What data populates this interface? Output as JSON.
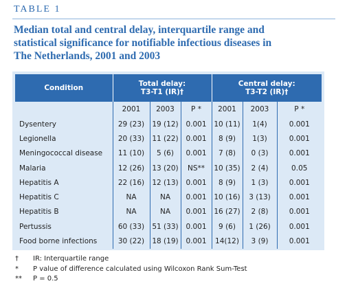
{
  "label": "TABLE 1",
  "caption": {
    "lines": [
      "Median total and central delay, interquartile range and",
      "statistical significance for notifiable infectious diseases in",
      "The Netherlands, 2001 and 2003"
    ]
  },
  "table": {
    "header": {
      "condition": "Condition",
      "groups": [
        {
          "lines": [
            "Total delay:",
            "T3-T1 (IR)†"
          ]
        },
        {
          "lines": [
            "Central delay:",
            "T3-T2 (IR)†"
          ]
        }
      ],
      "subheaders": [
        "2001",
        "2003",
        "P *",
        "2001",
        "2003",
        "P *"
      ]
    },
    "rows": [
      [
        "Dysentery",
        "29 (23)",
        "19 (12)",
        "0.001",
        "10 (11)",
        "1(4)",
        "0.001"
      ],
      [
        "Legionella",
        "20 (33)",
        "11 (22)",
        "0.001",
        "8 (9)",
        "1(3)",
        "0.001"
      ],
      [
        "Meningococcal disease",
        "11 (10)",
        "5 (6)",
        "0.001",
        "7 (8)",
        "0 (3)",
        "0.001"
      ],
      [
        "Malaria",
        "12 (26)",
        "13 (20)",
        "NS**",
        "10 (35)",
        "2 (4)",
        "0.05"
      ],
      [
        "Hepatitis A",
        "22 (16)",
        "12 (13)",
        "0.001",
        "8 (9)",
        "1 (3)",
        "0.001"
      ],
      [
        "Hepatitis C",
        "NA",
        "NA",
        "0.001",
        "10 (16)",
        "3 (13)",
        "0.001"
      ],
      [
        "Hepatitis  B",
        "NA",
        "NA",
        "0.001",
        "16 (27)",
        "2 (8)",
        "0.001"
      ],
      [
        "Pertussis",
        "60 (33)",
        "51 (33)",
        "0.001",
        "9 (6)",
        "1 (26)",
        "0.001"
      ],
      [
        "Food borne infections",
        "30 (22)",
        "18 (19)",
        "0.001",
        "14(12)",
        "3 (9)",
        "0.001"
      ]
    ]
  },
  "footnotes": [
    {
      "symbol": "†",
      "text": "IR: Interquartile range"
    },
    {
      "symbol": "*",
      "text": "P value of difference calculated using Wilcoxon Rank Sum-Test"
    },
    {
      "symbol": "**",
      "text": "P = 0.5"
    }
  ]
}
